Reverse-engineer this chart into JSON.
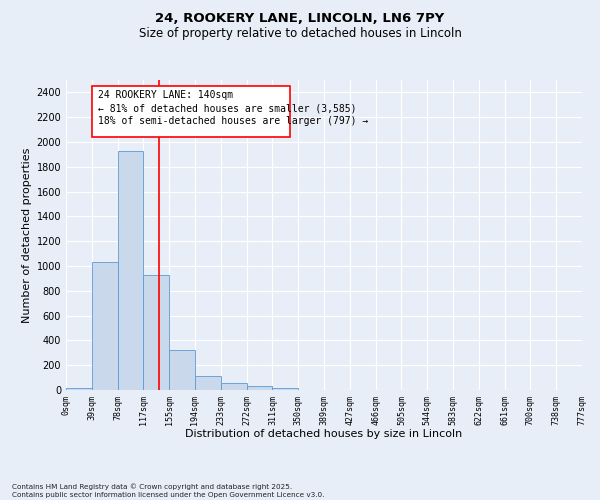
{
  "title_line1": "24, ROOKERY LANE, LINCOLN, LN6 7PY",
  "title_line2": "Size of property relative to detached houses in Lincoln",
  "xlabel": "Distribution of detached houses by size in Lincoln",
  "ylabel": "Number of detached properties",
  "bins": [
    "0sqm",
    "39sqm",
    "78sqm",
    "117sqm",
    "155sqm",
    "194sqm",
    "233sqm",
    "272sqm",
    "311sqm",
    "350sqm",
    "389sqm",
    "427sqm",
    "466sqm",
    "505sqm",
    "544sqm",
    "583sqm",
    "622sqm",
    "661sqm",
    "700sqm",
    "738sqm",
    "777sqm"
  ],
  "bar_values": [
    20,
    1030,
    1930,
    930,
    325,
    110,
    55,
    30,
    20,
    0,
    0,
    0,
    0,
    0,
    0,
    0,
    0,
    0,
    0,
    0
  ],
  "bar_color": "#c9d9eb",
  "bar_edge_color": "#5b9bd5",
  "ylim": [
    0,
    2500
  ],
  "yticks": [
    0,
    200,
    400,
    600,
    800,
    1000,
    1200,
    1400,
    1600,
    1800,
    2000,
    2200,
    2400
  ],
  "vline_x": 3.59,
  "vline_color": "red",
  "annotation_text_line1": "24 ROOKERY LANE: 140sqm",
  "annotation_text_line2": "← 81% of detached houses are smaller (3,585)",
  "annotation_text_line3": "18% of semi-detached houses are larger (797) →",
  "footnote": "Contains HM Land Registry data © Crown copyright and database right 2025.\nContains public sector information licensed under the Open Government Licence v3.0.",
  "bg_color": "#e8eef7",
  "plot_bg_color": "#e8eef7",
  "grid_color": "white",
  "title_fontsize": 9.5,
  "subtitle_fontsize": 8.5,
  "tick_fontsize": 6,
  "label_fontsize": 8,
  "annot_fontsize": 7
}
